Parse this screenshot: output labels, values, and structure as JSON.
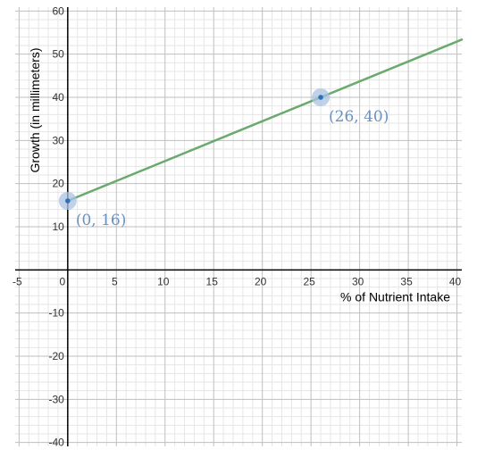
{
  "chart_data": {
    "type": "line",
    "xlabel": "% of Nutrient Intake",
    "ylabel": "Growth (in millimeters)",
    "xlim": [
      -5.4,
      40.5
    ],
    "ylim": [
      -40.9,
      60.9
    ],
    "x_ticks": [
      "-5",
      "0",
      "5",
      "10",
      "15",
      "20",
      "25",
      "30",
      "35",
      "40"
    ],
    "y_ticks": [
      "60",
      "50",
      "40",
      "30",
      "20",
      "10",
      "-10",
      "-20",
      "-30",
      "-40"
    ],
    "minor_step_x": 1,
    "minor_step_y": 2,
    "grid": true,
    "line": {
      "slope": 0.9230769,
      "intercept": 16,
      "color": "#6aaa6f"
    },
    "points": [
      {
        "x": 0,
        "y": 16,
        "label": "(0, 16)"
      },
      {
        "x": 26,
        "y": 40,
        "label": "(26, 40)"
      }
    ],
    "colors": {
      "point": "#2d70b3",
      "point_halo": "#a9c3e3",
      "label": "#6a91bf"
    }
  }
}
